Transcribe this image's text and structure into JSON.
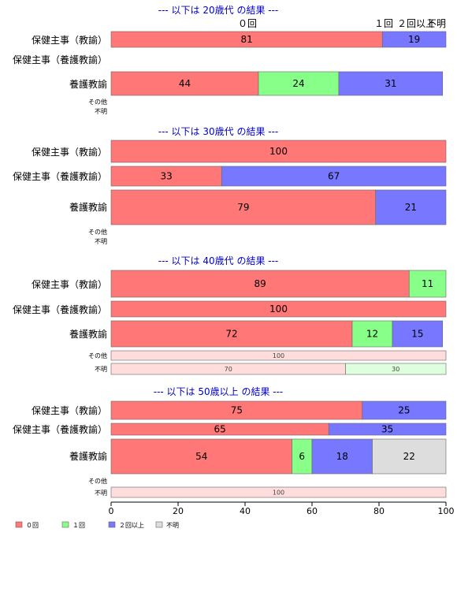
{
  "chart_data": {
    "type": "bar",
    "orientation": "horizontal",
    "stacked": true,
    "xlim": [
      0,
      100
    ],
    "x_ticks": [
      "0",
      "20",
      "40",
      "60",
      "80",
      "100"
    ],
    "top_column_labels": [
      "０回",
      "１回",
      "２回以上",
      "不明"
    ],
    "legend": [
      {
        "key": "zero",
        "label": "０回",
        "color": "#ff7777"
      },
      {
        "key": "one",
        "label": "１回",
        "color": "#88ff88"
      },
      {
        "key": "two",
        "label": "２回以上",
        "color": "#7777ff"
      },
      {
        "key": "unknown",
        "label": "不明",
        "color": "#dddddd"
      }
    ],
    "light_colors": {
      "zero": "#ffdddd",
      "one": "#ddffdd",
      "two": "#ddddff",
      "unknown": "#eeeeee"
    },
    "colors": {
      "title": "#0000cc",
      "bar_outline": "#666666",
      "axis": "#000000"
    },
    "groups": [
      {
        "title": "--- 以下は 20歳代 の結果 ---",
        "rows": [
          {
            "label": "保健主事（教諭）",
            "size": "large",
            "segments": [
              {
                "key": "zero",
                "value": 81,
                "label": "81"
              },
              {
                "key": "two",
                "value": 19,
                "label": "19"
              }
            ]
          },
          {
            "label": "保健主事（養護教諭）",
            "size": "large",
            "segments": []
          },
          {
            "label": "養護教諭",
            "size": "large",
            "segments": [
              {
                "key": "zero",
                "value": 44,
                "label": "44"
              },
              {
                "key": "one",
                "value": 24,
                "label": "24"
              },
              {
                "key": "two",
                "value": 31,
                "label": "31"
              }
            ]
          },
          {
            "label": "その他",
            "size": "small",
            "segments": []
          },
          {
            "label": "不明",
            "size": "small",
            "segments": []
          }
        ]
      },
      {
        "title": "--- 以下は 30歳代 の結果 ---",
        "rows": [
          {
            "label": "保健主事（教諭）",
            "size": "large",
            "segments": [
              {
                "key": "zero",
                "value": 100,
                "label": "100"
              }
            ]
          },
          {
            "label": "保健主事（養護教諭）",
            "size": "large",
            "segments": [
              {
                "key": "zero",
                "value": 33,
                "label": "33"
              },
              {
                "key": "two",
                "value": 67,
                "label": "67"
              }
            ]
          },
          {
            "label": "養護教諭",
            "size": "large",
            "segments": [
              {
                "key": "zero",
                "value": 79,
                "label": "79"
              },
              {
                "key": "two",
                "value": 21,
                "label": "21"
              }
            ]
          },
          {
            "label": "その他",
            "size": "small",
            "segments": []
          },
          {
            "label": "不明",
            "size": "small",
            "segments": []
          }
        ]
      },
      {
        "title": "--- 以下は 40歳代 の結果 ---",
        "rows": [
          {
            "label": "保健主事（教諭）",
            "size": "large",
            "segments": [
              {
                "key": "zero",
                "value": 89,
                "label": "89"
              },
              {
                "key": "one",
                "value": 11,
                "label": "11"
              }
            ]
          },
          {
            "label": "保健主事（養護教諭）",
            "size": "large",
            "segments": [
              {
                "key": "zero",
                "value": 100,
                "label": "100"
              }
            ]
          },
          {
            "label": "養護教諭",
            "size": "large",
            "segments": [
              {
                "key": "zero",
                "value": 72,
                "label": "72"
              },
              {
                "key": "one",
                "value": 12,
                "label": "12"
              },
              {
                "key": "two",
                "value": 15,
                "label": "15"
              }
            ]
          },
          {
            "label": "その他",
            "size": "small",
            "segments": [
              {
                "key": "zero",
                "value": 100,
                "label": "100"
              }
            ]
          },
          {
            "label": "不明",
            "size": "small",
            "segments": [
              {
                "key": "zero",
                "value": 70,
                "label": "70"
              },
              {
                "key": "one",
                "value": 30,
                "label": "30"
              }
            ]
          }
        ]
      },
      {
        "title": "--- 以下は 50歳以上 の結果 ---",
        "rows": [
          {
            "label": "保健主事（教諭）",
            "size": "large",
            "segments": [
              {
                "key": "zero",
                "value": 75,
                "label": "75"
              },
              {
                "key": "two",
                "value": 25,
                "label": "25"
              }
            ]
          },
          {
            "label": "保健主事（養護教諭）",
            "size": "large",
            "segments": [
              {
                "key": "zero",
                "value": 65,
                "label": "65"
              },
              {
                "key": "two",
                "value": 35,
                "label": "35"
              }
            ]
          },
          {
            "label": "養護教諭",
            "size": "large",
            "segments": [
              {
                "key": "zero",
                "value": 54,
                "label": "54"
              },
              {
                "key": "one",
                "value": 6,
                "label": "6"
              },
              {
                "key": "two",
                "value": 18,
                "label": "18"
              },
              {
                "key": "unknown",
                "value": 22,
                "label": "22"
              }
            ]
          },
          {
            "label": "その他",
            "size": "small",
            "segments": []
          },
          {
            "label": "不明",
            "size": "small",
            "segments": [
              {
                "key": "zero",
                "value": 100,
                "label": "100"
              }
            ]
          }
        ]
      }
    ]
  }
}
